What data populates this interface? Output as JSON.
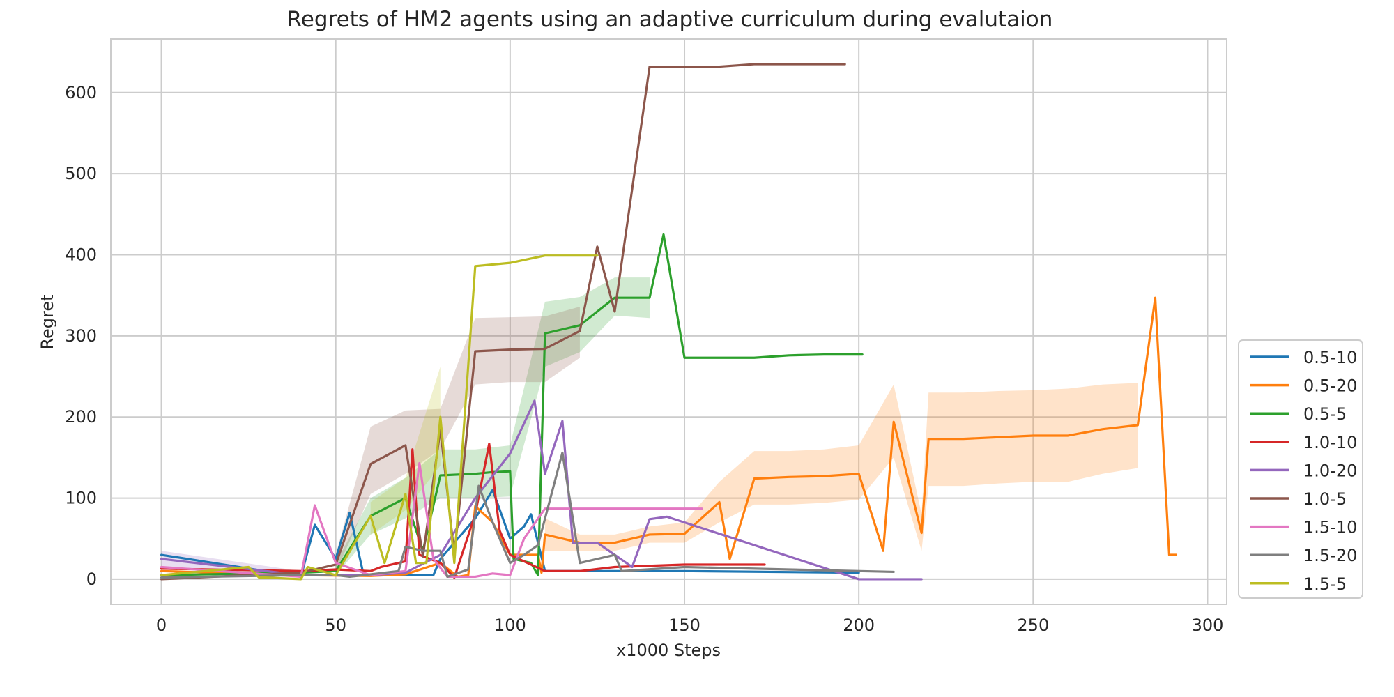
{
  "chart_data": {
    "type": "line",
    "title": "Regrets of HM2 agents using an adaptive curriculum during evalutaion",
    "xlabel": "x1000 Steps",
    "ylabel": "Regret",
    "xlim": [
      -14.5,
      305.5
    ],
    "ylim": [
      -31,
      666
    ],
    "xticks": [
      0,
      50,
      100,
      150,
      200,
      250,
      300
    ],
    "yticks": [
      0,
      100,
      200,
      300,
      400,
      500,
      600
    ],
    "grid": true,
    "legend_position": "lower-right outside",
    "series": [
      {
        "name": "0.5-10",
        "color": "#1f77b4",
        "points": [
          [
            0,
            30
          ],
          [
            40,
            3
          ],
          [
            44,
            67
          ],
          [
            50,
            25
          ],
          [
            54,
            82
          ],
          [
            58,
            5
          ],
          [
            63,
            6
          ],
          [
            70,
            5
          ],
          [
            72,
            5
          ],
          [
            75,
            5
          ],
          [
            78,
            5
          ],
          [
            80,
            25
          ],
          [
            85,
            50
          ],
          [
            90,
            75
          ],
          [
            95,
            110
          ],
          [
            100,
            50
          ],
          [
            104,
            65
          ],
          [
            106,
            80
          ],
          [
            110,
            10
          ],
          [
            120,
            10
          ],
          [
            130,
            10
          ],
          [
            150,
            10
          ],
          [
            200,
            8
          ]
        ],
        "band": []
      },
      {
        "name": "0.5-20",
        "color": "#ff7f0e",
        "points": [
          [
            0,
            10
          ],
          [
            40,
            5
          ],
          [
            60,
            4
          ],
          [
            70,
            6
          ],
          [
            80,
            20
          ],
          [
            85,
            3
          ],
          [
            88,
            5
          ],
          [
            90,
            90
          ],
          [
            95,
            70
          ],
          [
            100,
            30
          ],
          [
            108,
            30
          ],
          [
            109,
            8
          ],
          [
            110,
            55
          ],
          [
            120,
            45
          ],
          [
            130,
            45
          ],
          [
            140,
            55
          ],
          [
            150,
            56
          ],
          [
            160,
            95
          ],
          [
            163,
            25
          ],
          [
            170,
            124
          ],
          [
            180,
            126
          ],
          [
            190,
            127
          ],
          [
            200,
            130
          ],
          [
            207,
            35
          ],
          [
            210,
            194
          ],
          [
            218,
            57
          ],
          [
            220,
            173
          ],
          [
            230,
            173
          ],
          [
            240,
            175
          ],
          [
            250,
            177
          ],
          [
            260,
            177
          ],
          [
            270,
            185
          ],
          [
            280,
            190
          ],
          [
            285,
            347
          ],
          [
            289,
            30
          ],
          [
            291,
            30
          ]
        ],
        "band": [
          [
            110,
            75,
            35
          ],
          [
            120,
            55,
            35
          ],
          [
            130,
            55,
            35
          ],
          [
            140,
            65,
            45
          ],
          [
            150,
            70,
            45
          ],
          [
            160,
            120,
            70
          ],
          [
            170,
            158,
            92
          ],
          [
            180,
            158,
            92
          ],
          [
            190,
            160,
            94
          ],
          [
            200,
            165,
            98
          ],
          [
            210,
            240,
            150
          ],
          [
            218,
            80,
            35
          ],
          [
            220,
            230,
            115
          ],
          [
            230,
            230,
            115
          ],
          [
            240,
            232,
            118
          ],
          [
            250,
            233,
            120
          ],
          [
            260,
            235,
            120
          ],
          [
            270,
            240,
            130
          ],
          [
            280,
            242,
            137
          ]
        ]
      },
      {
        "name": "0.5-5",
        "color": "#2ca02c",
        "points": [
          [
            0,
            5
          ],
          [
            40,
            8
          ],
          [
            50,
            10
          ],
          [
            60,
            78
          ],
          [
            70,
            100
          ],
          [
            75,
            35
          ],
          [
            80,
            128
          ],
          [
            90,
            130
          ],
          [
            95,
            132
          ],
          [
            100,
            133
          ],
          [
            101,
            25
          ],
          [
            106,
            20
          ],
          [
            108,
            5
          ],
          [
            110,
            303
          ],
          [
            120,
            313
          ],
          [
            130,
            347
          ],
          [
            140,
            347
          ],
          [
            144,
            425
          ],
          [
            150,
            273
          ],
          [
            160,
            273
          ],
          [
            170,
            273
          ],
          [
            180,
            276
          ],
          [
            190,
            277
          ],
          [
            201,
            277
          ]
        ],
        "band": [
          [
            50,
            20,
            5
          ],
          [
            60,
            100,
            55
          ],
          [
            70,
            125,
            75
          ],
          [
            80,
            160,
            100
          ],
          [
            90,
            160,
            100
          ],
          [
            100,
            165,
            102
          ],
          [
            110,
            342,
            262
          ],
          [
            120,
            348,
            280
          ],
          [
            130,
            372,
            325
          ],
          [
            140,
            372,
            322
          ]
        ]
      },
      {
        "name": "1.0-10",
        "color": "#d62728",
        "points": [
          [
            0,
            13
          ],
          [
            40,
            10
          ],
          [
            50,
            12
          ],
          [
            60,
            10
          ],
          [
            63,
            15
          ],
          [
            70,
            22
          ],
          [
            72,
            160
          ],
          [
            74,
            30
          ],
          [
            80,
            20
          ],
          [
            84,
            2
          ],
          [
            90,
            80
          ],
          [
            94,
            167
          ],
          [
            97,
            60
          ],
          [
            100,
            30
          ],
          [
            105,
            20
          ],
          [
            110,
            10
          ],
          [
            120,
            10
          ],
          [
            130,
            15
          ],
          [
            150,
            18
          ],
          [
            173,
            18
          ]
        ],
        "band": []
      },
      {
        "name": "1.0-20",
        "color": "#9467bd",
        "points": [
          [
            0,
            25
          ],
          [
            40,
            5
          ],
          [
            50,
            5
          ],
          [
            60,
            5
          ],
          [
            70,
            8
          ],
          [
            80,
            30
          ],
          [
            90,
            100
          ],
          [
            100,
            155
          ],
          [
            107,
            220
          ],
          [
            110,
            130
          ],
          [
            115,
            195
          ],
          [
            118,
            45
          ],
          [
            125,
            45
          ],
          [
            135,
            15
          ],
          [
            140,
            74
          ],
          [
            145,
            77
          ],
          [
            200,
            0
          ],
          [
            218,
            0
          ]
        ],
        "band": [
          [
            0,
            35,
            15
          ],
          [
            40,
            10,
            2
          ]
        ]
      },
      {
        "name": "1.0-5",
        "color": "#8c564b",
        "points": [
          [
            0,
            0
          ],
          [
            40,
            8
          ],
          [
            50,
            18
          ],
          [
            60,
            142
          ],
          [
            70,
            165
          ],
          [
            75,
            28
          ],
          [
            80,
            185
          ],
          [
            84,
            30
          ],
          [
            90,
            281
          ],
          [
            100,
            283
          ],
          [
            110,
            284
          ],
          [
            120,
            306
          ],
          [
            125,
            410
          ],
          [
            130,
            330
          ],
          [
            140,
            632
          ],
          [
            150,
            632
          ],
          [
            160,
            632
          ],
          [
            170,
            635
          ],
          [
            180,
            635
          ],
          [
            196,
            635
          ]
        ],
        "band": [
          [
            50,
            30,
            8
          ],
          [
            60,
            188,
            105
          ],
          [
            70,
            208,
            130
          ],
          [
            80,
            210,
            160
          ],
          [
            90,
            322,
            240
          ],
          [
            100,
            323,
            243
          ],
          [
            110,
            324,
            243
          ],
          [
            120,
            336,
            273
          ]
        ]
      },
      {
        "name": "1.5-10",
        "color": "#e377c2",
        "points": [
          [
            0,
            15
          ],
          [
            40,
            3
          ],
          [
            44,
            91
          ],
          [
            50,
            20
          ],
          [
            60,
            5
          ],
          [
            70,
            10
          ],
          [
            74,
            143
          ],
          [
            78,
            25
          ],
          [
            82,
            3
          ],
          [
            90,
            3
          ],
          [
            95,
            7
          ],
          [
            100,
            5
          ],
          [
            104,
            50
          ],
          [
            110,
            87
          ],
          [
            120,
            87
          ],
          [
            130,
            87
          ],
          [
            140,
            87
          ],
          [
            155,
            87
          ]
        ],
        "band": []
      },
      {
        "name": "1.5-20",
        "color": "#7f7f7f",
        "points": [
          [
            0,
            2
          ],
          [
            40,
            5
          ],
          [
            50,
            5
          ],
          [
            54,
            3
          ],
          [
            60,
            6
          ],
          [
            68,
            10
          ],
          [
            70,
            40
          ],
          [
            75,
            35
          ],
          [
            80,
            35
          ],
          [
            82,
            3
          ],
          [
            88,
            12
          ],
          [
            91,
            115
          ],
          [
            95,
            70
          ],
          [
            100,
            20
          ],
          [
            104,
            30
          ],
          [
            108,
            42
          ],
          [
            115,
            156
          ],
          [
            120,
            20
          ],
          [
            130,
            30
          ],
          [
            132,
            10
          ],
          [
            150,
            15
          ],
          [
            180,
            12
          ],
          [
            210,
            9
          ]
        ],
        "band": []
      },
      {
        "name": "1.5-5",
        "color": "#bcbd22",
        "points": [
          [
            0,
            5
          ],
          [
            25,
            15
          ],
          [
            28,
            2
          ],
          [
            30,
            2
          ],
          [
            40,
            0
          ],
          [
            42,
            15
          ],
          [
            50,
            5
          ],
          [
            60,
            78
          ],
          [
            64,
            20
          ],
          [
            70,
            105
          ],
          [
            73,
            20
          ],
          [
            76,
            20
          ],
          [
            80,
            200
          ],
          [
            84,
            20
          ],
          [
            90,
            386
          ],
          [
            100,
            390
          ],
          [
            110,
            399
          ],
          [
            125,
            399
          ]
        ],
        "band": [
          [
            60,
            95,
            55
          ],
          [
            70,
            125,
            85
          ],
          [
            80,
            262,
            140
          ]
        ]
      }
    ]
  }
}
